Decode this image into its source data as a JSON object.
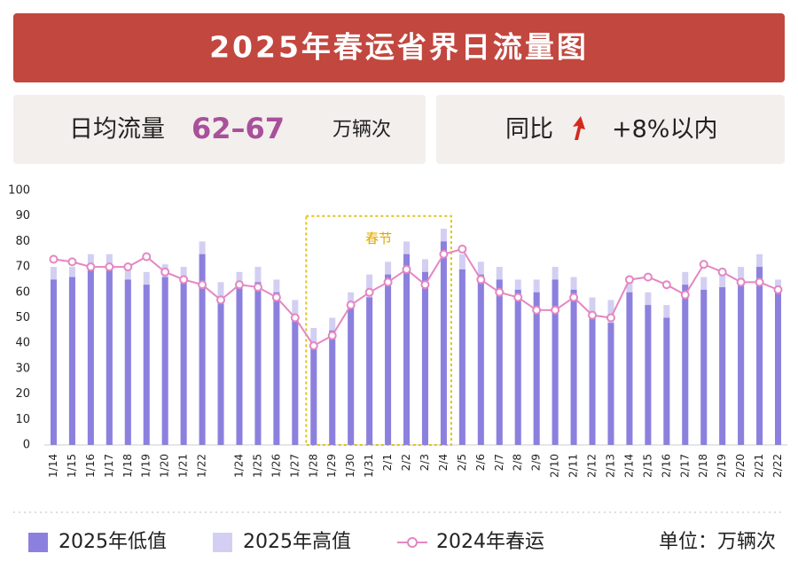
{
  "header": {
    "title": "2025年春运省界日流量图",
    "avg_label": "日均流量",
    "avg_value": "62–67",
    "avg_unit": "万辆次",
    "yoy_label": "同比",
    "yoy_value": "+8%以内"
  },
  "chart_data": {
    "type": "bar",
    "annotation": "春节",
    "unit": "单位：万辆次",
    "categories": [
      "1/14",
      "1/15",
      "1/16",
      "1/17",
      "1/18",
      "1/19",
      "1/20",
      "1/21",
      "1/22",
      null,
      "1/24",
      "1/25",
      "1/26",
      "1/27",
      "1/28",
      "1/29",
      "1/30",
      "1/31",
      "2/1",
      "2/2",
      "2/3",
      "2/4",
      "2/5",
      "2/6",
      "2/7",
      "2/8",
      "2/9",
      "2/10",
      "2/11",
      "2/12",
      "2/13",
      "2/14",
      "2/15",
      "2/16",
      "2/17",
      "2/18",
      "2/19",
      "2/20",
      "2/21",
      "2/22"
    ],
    "series": [
      {
        "name": "2025年低值",
        "type": "bar",
        "color": "#8c80de",
        "values": [
          65,
          66,
          70,
          70,
          65,
          63,
          66,
          65,
          75,
          58,
          63,
          64,
          60,
          49,
          38,
          45,
          55,
          58,
          67,
          75,
          68,
          80,
          69,
          67,
          65,
          61,
          60,
          65,
          61,
          50,
          48,
          60,
          55,
          50,
          63,
          61,
          62,
          63,
          70,
          60
        ]
      },
      {
        "name": "2025年高值",
        "type": "bar",
        "color": "#d3cff3",
        "values": [
          70,
          70,
          75,
          75,
          70,
          68,
          71,
          70,
          80,
          64,
          68,
          70,
          65,
          57,
          46,
          50,
          60,
          67,
          72,
          80,
          73,
          85,
          75,
          72,
          70,
          65,
          65,
          70,
          66,
          58,
          57,
          65,
          60,
          55,
          68,
          66,
          67,
          70,
          75,
          65
        ]
      },
      {
        "name": "2024年春运",
        "type": "line",
        "color": "#e487c2",
        "values": [
          73,
          72,
          70,
          70,
          70,
          74,
          68,
          65,
          63,
          57,
          63,
          62,
          58,
          50,
          39,
          43,
          55,
          60,
          64,
          69,
          63,
          75,
          77,
          65,
          60,
          58,
          53,
          53,
          58,
          51,
          50,
          65,
          66,
          63,
          59,
          71,
          68,
          64,
          64,
          61
        ]
      }
    ],
    "ylim": [
      0,
      100
    ],
    "yticks": [
      0,
      10,
      20,
      30,
      40,
      50,
      60,
      70,
      80,
      90,
      100
    ]
  }
}
